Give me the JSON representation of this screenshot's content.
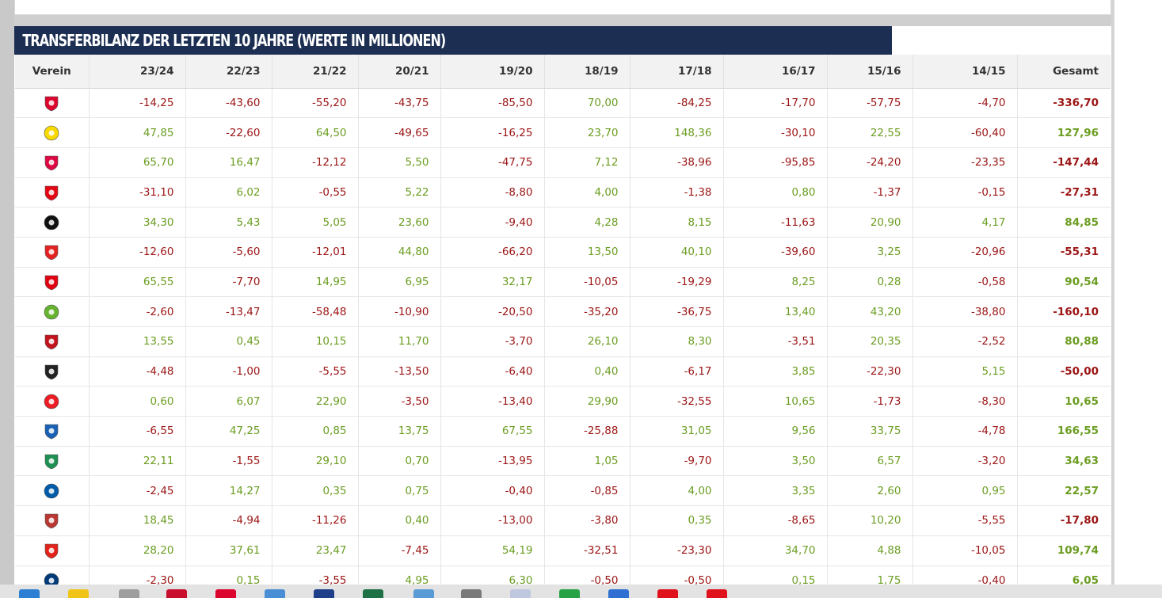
{
  "title": "TRANSFERBILANZ DER LETZTEN 10 JAHRE (WERTE IN MILLIONEN)",
  "columns": [
    "Verein",
    "23/24",
    "22/23",
    "21/22",
    "20/21",
    "19/20",
    "18/19",
    "17/18",
    "16/17",
    "15/16",
    "14/15",
    "Gesamt"
  ],
  "rows": [
    {
      "crest": "fc-bayern-crest",
      "color": "#dc052d",
      "values": [
        "-14,25",
        "-43,60",
        "-55,20",
        "-43,75",
        "-85,50",
        "70,00",
        "-84,25",
        "-17,70",
        "-57,75",
        "-4,70",
        "-336,70"
      ]
    },
    {
      "crest": "bvb-crest",
      "color": "#f7d900",
      "values": [
        "47,85",
        "-22,60",
        "64,50",
        "-49,65",
        "-16,25",
        "23,70",
        "148,36",
        "-30,10",
        "22,55",
        "-60,40",
        "127,96"
      ]
    },
    {
      "crest": "rb-leipzig-crest",
      "color": "#dd0741",
      "values": [
        "65,70",
        "16,47",
        "-12,12",
        "5,50",
        "-47,75",
        "7,12",
        "-38,96",
        "-95,85",
        "-24,20",
        "-23,35",
        "-147,44"
      ]
    },
    {
      "crest": "union-berlin-crest",
      "color": "#e30613",
      "values": [
        "-31,10",
        "6,02",
        "-0,55",
        "5,22",
        "-8,80",
        "4,00",
        "-1,38",
        "0,80",
        "-1,37",
        "-0,15",
        "-27,31"
      ]
    },
    {
      "crest": "sc-freiburg-crest",
      "color": "#111111",
      "values": [
        "34,30",
        "5,43",
        "5,05",
        "23,60",
        "-9,40",
        "4,28",
        "8,15",
        "-11,63",
        "20,90",
        "4,17",
        "84,85"
      ]
    },
    {
      "crest": "leverkusen-crest",
      "color": "#e32221",
      "values": [
        "-12,60",
        "-5,60",
        "-12,01",
        "44,80",
        "-66,20",
        "13,50",
        "40,10",
        "-39,60",
        "3,25",
        "-20,96",
        "-55,31"
      ]
    },
    {
      "crest": "eintracht-frankfurt-crest",
      "color": "#e1000f",
      "values": [
        "65,55",
        "-7,70",
        "14,95",
        "6,95",
        "32,17",
        "-10,05",
        "-19,29",
        "8,25",
        "0,28",
        "-0,58",
        "90,54"
      ]
    },
    {
      "crest": "vfl-wolfsburg-crest",
      "color": "#65b32e",
      "values": [
        "-2,60",
        "-13,47",
        "-58,48",
        "-10,90",
        "-20,50",
        "-35,20",
        "-36,75",
        "13,40",
        "43,20",
        "-38,80",
        "-160,10"
      ]
    },
    {
      "crest": "mainz-05-crest",
      "color": "#c3141e",
      "values": [
        "13,55",
        "0,45",
        "10,15",
        "11,70",
        "-3,70",
        "26,10",
        "8,30",
        "-3,51",
        "20,35",
        "-2,52",
        "80,88"
      ]
    },
    {
      "crest": "gladbach-crest",
      "color": "#222222",
      "values": [
        "-4,48",
        "-1,00",
        "-5,55",
        "-13,50",
        "-6,40",
        "0,40",
        "-6,17",
        "3,85",
        "-22,30",
        "5,15",
        "-50,00"
      ]
    },
    {
      "crest": "fc-koeln-crest",
      "color": "#ed1c24",
      "values": [
        "0,60",
        "6,07",
        "22,90",
        "-3,50",
        "-13,40",
        "29,90",
        "-32,55",
        "10,65",
        "-1,73",
        "-8,30",
        "10,65"
      ]
    },
    {
      "crest": "hoffenheim-crest",
      "color": "#1961b5",
      "values": [
        "-6,55",
        "47,25",
        "0,85",
        "13,75",
        "67,55",
        "-25,88",
        "31,05",
        "9,56",
        "33,75",
        "-4,78",
        "166,55"
      ]
    },
    {
      "crest": "werder-bremen-crest",
      "color": "#1d9053",
      "values": [
        "22,11",
        "-1,55",
        "29,10",
        "0,70",
        "-13,95",
        "1,05",
        "-9,70",
        "3,50",
        "6,57",
        "-3,20",
        "34,63"
      ]
    },
    {
      "crest": "vfl-bochum-crest",
      "color": "#005ca9",
      "values": [
        "-2,45",
        "14,27",
        "0,35",
        "0,75",
        "-0,40",
        "-0,85",
        "4,00",
        "3,35",
        "2,60",
        "0,95",
        "22,57"
      ]
    },
    {
      "crest": "fc-augsburg-crest",
      "color": "#ba3733",
      "values": [
        "18,45",
        "-4,94",
        "-11,26",
        "0,40",
        "-13,00",
        "-3,80",
        "0,35",
        "-8,65",
        "10,20",
        "-5,55",
        "-17,80"
      ]
    },
    {
      "crest": "vfb-stuttgart-crest",
      "color": "#e32219",
      "values": [
        "28,20",
        "37,61",
        "23,47",
        "-7,45",
        "54,19",
        "-32,51",
        "-23,30",
        "34,70",
        "4,88",
        "-10,05",
        "109,74"
      ]
    },
    {
      "crest": "heidenheim-crest",
      "color": "#003b79",
      "values": [
        "-2,30",
        "0,15",
        "-3,55",
        "4,95",
        "6,30",
        "-0,50",
        "-0,50",
        "0,15",
        "1,75",
        "-0,40",
        "6,05"
      ]
    }
  ],
  "colors": {
    "header_bg": "#1c2e52",
    "positive": "#6b9d22",
    "negative": "#9c1515"
  },
  "taskbar_icons": [
    "folder-icon",
    "explorer-icon",
    "chrome-icon",
    "pdf-icon",
    "bayern-app-icon",
    "map-icon",
    "calendar-icon",
    "excel-icon",
    "monitor-icon",
    "print-icon",
    "file-icon",
    "whatsapp-icon",
    "paint-icon",
    "opera-icon",
    "opera-gx-icon"
  ]
}
